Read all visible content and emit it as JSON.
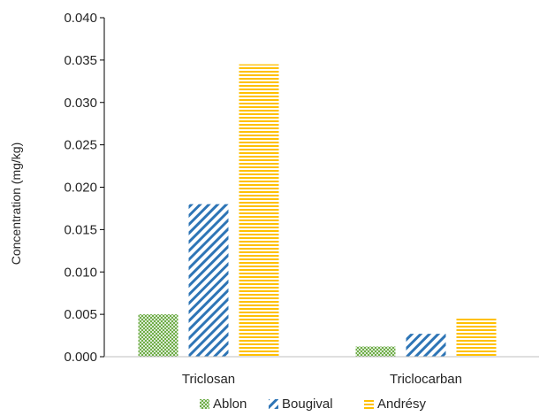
{
  "chart_data": {
    "type": "bar",
    "title": "",
    "xlabel": "",
    "ylabel": "Concentration (mg/kg)",
    "ylim": [
      0,
      0.04
    ],
    "yticks": [
      "0.000",
      "0.005",
      "0.010",
      "0.015",
      "0.020",
      "0.025",
      "0.030",
      "0.035",
      "0.040"
    ],
    "categories": [
      "Triclosan",
      "Triclocarban"
    ],
    "series": [
      {
        "name": "Ablon",
        "values": [
          0.005,
          0.0012
        ],
        "color": "#70ad47",
        "pattern": "dots"
      },
      {
        "name": "Bougival",
        "values": [
          0.018,
          0.0027
        ],
        "color": "#2e75b6",
        "pattern": "diagonal"
      },
      {
        "name": "Andrésy",
        "values": [
          0.0345,
          0.0046
        ],
        "color": "#ffc000",
        "pattern": "horizontal"
      }
    ],
    "grid": false,
    "legend_position": "bottom"
  }
}
